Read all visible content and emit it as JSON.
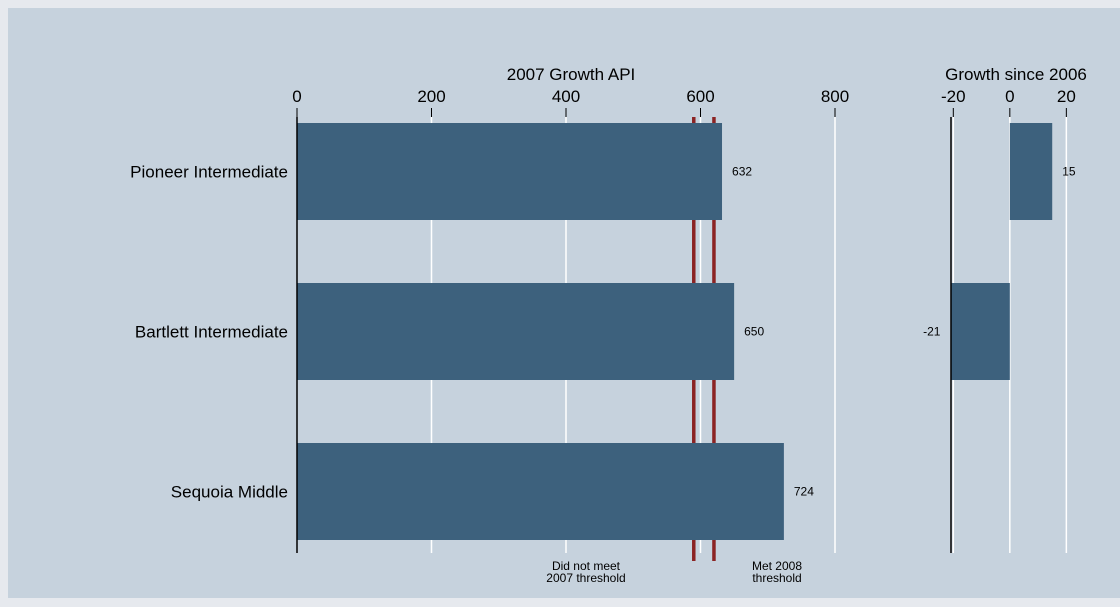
{
  "colors": {
    "page_background": "#e6e9ee",
    "plot_background": "#c6d2dd",
    "bar": "#3d617d",
    "threshold_line": "#8b2323",
    "gridline": "#ffffff",
    "axis": "#000000"
  },
  "chart_data": [
    {
      "type": "bar",
      "orientation": "horizontal",
      "title": "2007 Growth API",
      "categories": [
        "Pioneer Intermediate",
        "Bartlett Intermediate",
        "Sequoia Middle"
      ],
      "values": [
        632,
        650,
        724
      ],
      "data_labels": [
        "632",
        "650",
        "724"
      ],
      "xlim": [
        0,
        800
      ],
      "ticks": [
        0,
        200,
        400,
        600,
        800
      ],
      "tick_labels": [
        "0",
        "200",
        "400",
        "600",
        "800"
      ],
      "grid": true,
      "reference_lines": [
        {
          "value": 590,
          "label_lines": [
            "Did not meet",
            "2007 threshold"
          ]
        },
        {
          "value": 620,
          "label_lines": [
            "Met 2008",
            "threshold"
          ]
        }
      ]
    },
    {
      "type": "bar",
      "orientation": "horizontal",
      "title": "Growth since 2006",
      "categories": [
        "Pioneer Intermediate",
        "Bartlett Intermediate",
        "Sequoia Middle"
      ],
      "values": [
        15,
        -21,
        null
      ],
      "data_labels": [
        "15",
        "-21",
        ""
      ],
      "xlim": [
        -24,
        22
      ],
      "ticks": [
        -20,
        0,
        20
      ],
      "tick_labels": [
        "-20",
        "0",
        "20"
      ],
      "grid": true
    }
  ]
}
